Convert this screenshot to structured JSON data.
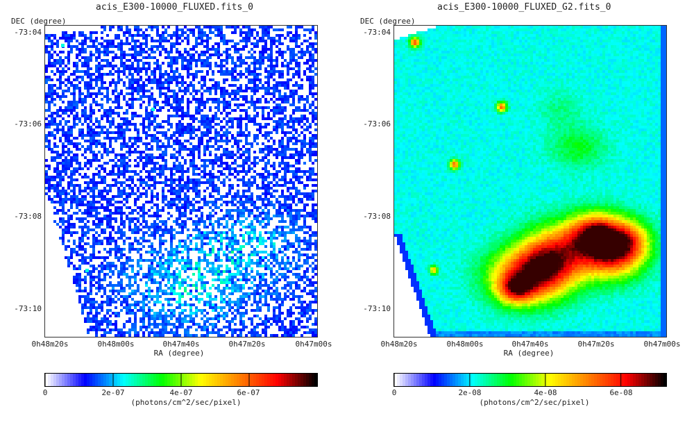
{
  "chart_data": [
    {
      "type": "heatmap",
      "title": "acis_E300-10000_FLUXED.fits_0",
      "xlabel": "RA (degree)",
      "ylabel": "DEC (degree)",
      "x_ticks": [
        "0h48m20s",
        "0h48m00s",
        "0h47m40s",
        "0h47m20s",
        "0h47m00s"
      ],
      "y_ticks": [
        "-73:04",
        "-73:06",
        "-73:08",
        "-73:10"
      ],
      "colorbar": {
        "label": "(photons/cm^2/sec/pixel)",
        "ticks": [
          "0",
          "2e-07",
          "4e-07",
          "6e-07"
        ],
        "tick_values": [
          0,
          2e-07,
          4e-07,
          6e-07
        ],
        "range": [
          0,
          8e-07
        ],
        "colormap": [
          "#ffffff",
          "#0000ff",
          "#00ffff",
          "#00ff00",
          "#ffff00",
          "#ff8000",
          "#ff0000",
          "#000000"
        ]
      },
      "description": "Sparse noisy photon flux image, mostly low values (blue/white), with a faint enhanced region in the lower center."
    },
    {
      "type": "heatmap",
      "title": "acis_E300-10000_FLUXED_G2.fits_0",
      "xlabel": "RA (degree)",
      "ylabel": "DEC (degree)",
      "x_ticks": [
        "0h48m20s",
        "0h48m00s",
        "0h47m40s",
        "0h47m20s",
        "0h47m00s"
      ],
      "y_ticks": [
        "-73:04",
        "-73:06",
        "-73:08",
        "-73:10"
      ],
      "colorbar": {
        "label": "(photons/cm^2/sec/pixel)",
        "ticks": [
          "0",
          "2e-08",
          "4e-08",
          "6e-08"
        ],
        "tick_values": [
          0,
          2e-08,
          4e-08,
          6e-08
        ],
        "range": [
          0,
          7.2e-08
        ],
        "colormap": [
          "#ffffff",
          "#0000ff",
          "#00ffff",
          "#00ff00",
          "#ffff00",
          "#ff8000",
          "#ff0000",
          "#000000"
        ]
      },
      "description": "Smoothed flux image, cyan background with bright emission (yellow/orange/red) in the lower right and several point sources."
    }
  ]
}
